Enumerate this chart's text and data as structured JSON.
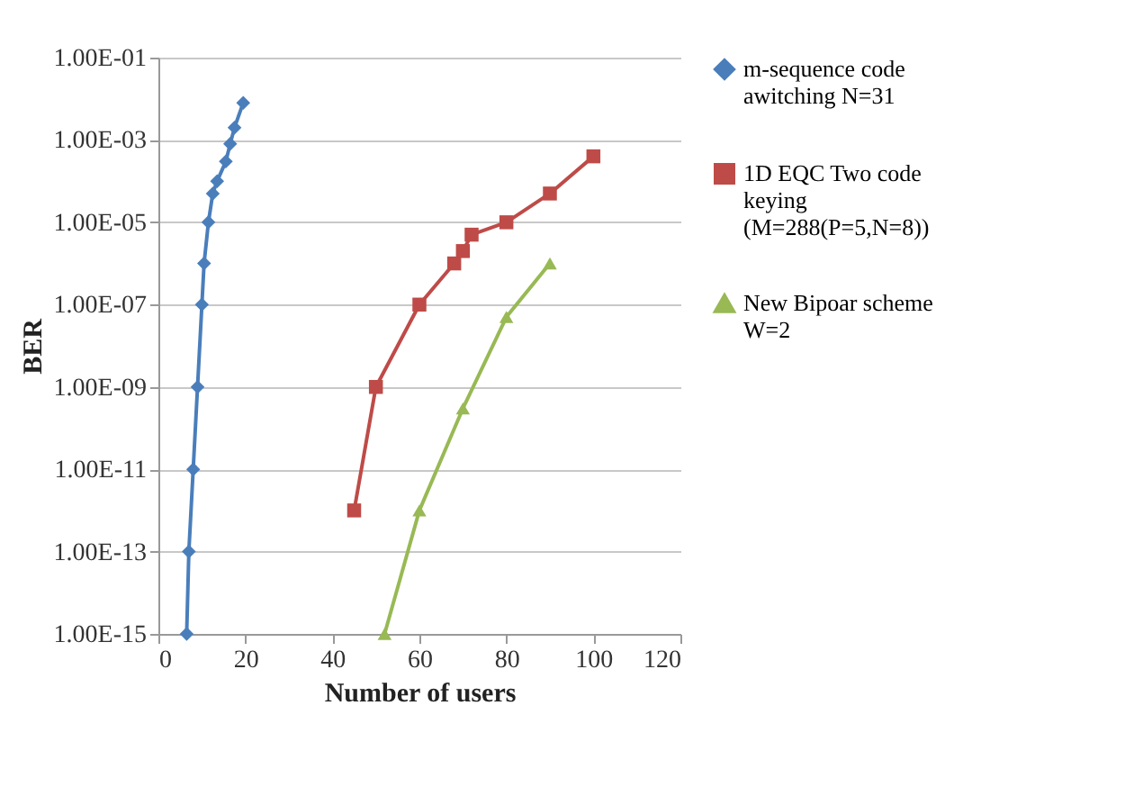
{
  "chart_data": {
    "type": "line",
    "xlabel": "Number of users",
    "ylabel": "BER",
    "log": "y",
    "grid": "y",
    "legend": "right",
    "xlim": [
      0,
      120
    ],
    "xticks": [
      0,
      20,
      40,
      60,
      80,
      100,
      120
    ],
    "ylim": [
      1e-15,
      0.1
    ],
    "yticks": [
      {
        "value": 1e-15,
        "label": "1.00E-15"
      },
      {
        "value": 1e-13,
        "label": "1.00E-13"
      },
      {
        "value": 1e-11,
        "label": "1.00E-11"
      },
      {
        "value": 1e-09,
        "label": "1.00E-09"
      },
      {
        "value": 1e-07,
        "label": "1.00E-07"
      },
      {
        "value": 1e-05,
        "label": "1.00E-05"
      },
      {
        "value": 0.001,
        "label": "1.00E-03"
      },
      {
        "value": 0.1,
        "label": "1.00E-01"
      }
    ],
    "series": [
      {
        "name": "m-sequence code awitching N=31",
        "color": "#4a7ebb",
        "marker": "diamond",
        "x": [
          6.5,
          7,
          8,
          9,
          10,
          10.5,
          11.5,
          12.5,
          13.5,
          15.5,
          16.5,
          17.5,
          19.5
        ],
        "values": [
          1e-15,
          1e-13,
          1e-11,
          1e-09,
          1e-07,
          1e-06,
          1e-05,
          5e-05,
          0.0001,
          0.0003,
          0.0008,
          0.002,
          0.008
        ]
      },
      {
        "name": "1D EQC Two code keying (M=288(P=5,N=8))",
        "color": "#be4b48",
        "marker": "square",
        "x": [
          45,
          50,
          60,
          68,
          70,
          72,
          80,
          90,
          100
        ],
        "values": [
          1e-12,
          1e-09,
          1e-07,
          1e-06,
          2e-06,
          5e-06,
          1e-05,
          5e-05,
          0.0004
        ]
      },
      {
        "name": "New Bipoar scheme W=2",
        "color": "#98b954",
        "marker": "triangle",
        "x": [
          52,
          60,
          70,
          80,
          90
        ],
        "values": [
          1e-15,
          1e-12,
          3e-10,
          5e-08,
          1e-06
        ]
      }
    ]
  }
}
